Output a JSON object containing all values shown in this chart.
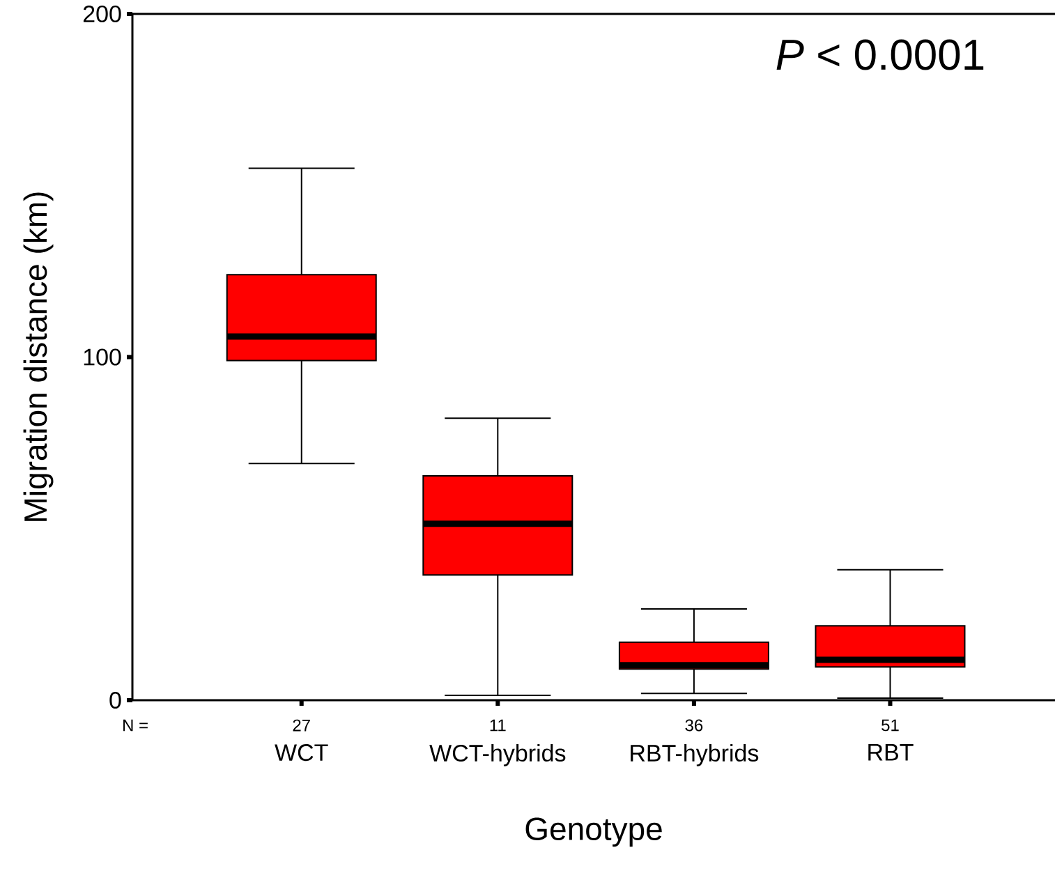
{
  "chart_data": {
    "type": "box",
    "xlabel": "Genotype",
    "ylabel": "Migration distance (km)",
    "categories": [
      "WCT",
      "WCT-hybrids",
      "RBT-hybrids",
      "RBT"
    ],
    "color": "#ff0000",
    "boxes": [
      {
        "low": 69,
        "q1": 99,
        "median": 106,
        "q3": 124,
        "high": 155
      },
      {
        "low": 1.4,
        "q1": 36.5,
        "median": 51.4,
        "q3": 65.4,
        "high": 82.2
      },
      {
        "low": 2,
        "q1": 9.1,
        "median": 10.2,
        "q3": 16.9,
        "high": 26.6
      },
      {
        "low": 0.6,
        "q1": 9.7,
        "median": 11.8,
        "q3": 21.7,
        "high": 38
      }
    ],
    "ylim": [
      0,
      200
    ],
    "yticks": [
      0,
      100,
      200
    ],
    "grid": false,
    "annotations": [
      "*P* < 0.0001",
      "N =",
      "27",
      "11",
      "36",
      "51"
    ]
  }
}
